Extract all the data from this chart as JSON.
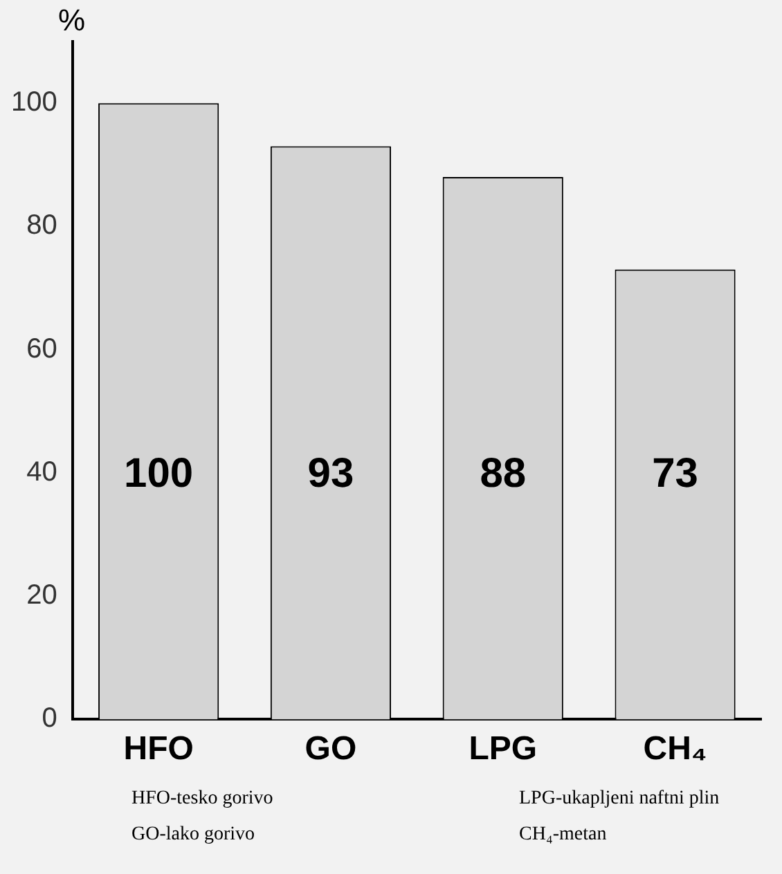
{
  "chart_data": {
    "type": "bar",
    "ylabel": "%",
    "categories": [
      "HFO",
      "GO",
      "LPG",
      "CH₄"
    ],
    "values": [
      100,
      93,
      88,
      73
    ],
    "color": "#d4d4d4",
    "ylim": [
      0,
      110
    ],
    "yticks": [
      0,
      20,
      40,
      60,
      80,
      100
    ],
    "grid": false,
    "legend": false,
    "data_labels": true,
    "annotations": [
      "HFO-tesko gorivo",
      "GO-lako gorivo",
      "LPG-ukapljeni naftni plin",
      "CH₄-metan"
    ]
  }
}
